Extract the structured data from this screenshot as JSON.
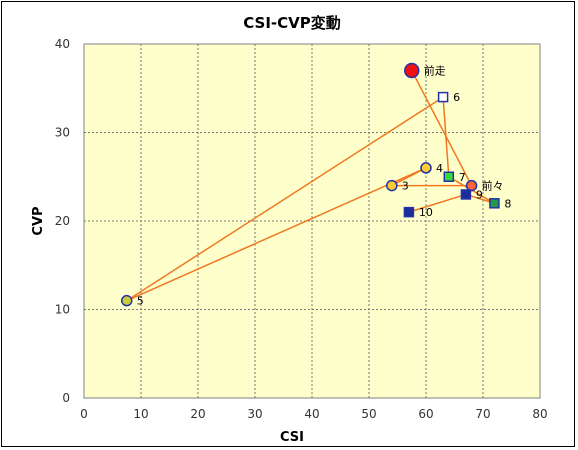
{
  "chart_data": {
    "type": "scatter",
    "title": "CSI-CVP変動",
    "xlabel": "CSI",
    "ylabel": "CVP",
    "xlim": [
      0,
      80
    ],
    "ylim": [
      0,
      40
    ],
    "xticks": [
      0,
      10,
      20,
      30,
      40,
      50,
      60,
      70,
      80
    ],
    "yticks": [
      0,
      10,
      20,
      30,
      40
    ],
    "grid": true,
    "plot_background": "#ffffcc",
    "line_color": "#f07820",
    "trajectory": [
      {
        "label": "前走",
        "x": 57.5,
        "y": 37.0,
        "marker": "circle-large",
        "fill": "#ee1111",
        "stroke": "#2233aa"
      },
      {
        "label": "前々",
        "x": 68.0,
        "y": 24.0,
        "marker": "circle",
        "fill": "#ff6633",
        "stroke": "#2233aa"
      },
      {
        "label": "3",
        "x": 54.0,
        "y": 24.0,
        "marker": "circle",
        "fill": "#ffcc33",
        "stroke": "#2233aa"
      },
      {
        "label": "4",
        "x": 60.0,
        "y": 26.0,
        "marker": "circle",
        "fill": "#ffcc33",
        "stroke": "#2233aa"
      },
      {
        "label": "5",
        "x": 7.5,
        "y": 11.0,
        "marker": "circle",
        "fill": "#cccc33",
        "stroke": "#2233aa"
      },
      {
        "label": "6",
        "x": 63.0,
        "y": 34.0,
        "marker": "square",
        "fill": "#ffffff",
        "stroke": "#2233aa"
      },
      {
        "label": "7",
        "x": 64.0,
        "y": 25.0,
        "marker": "square",
        "fill": "#33dd33",
        "stroke": "#2233aa"
      },
      {
        "label": "8",
        "x": 72.0,
        "y": 22.0,
        "marker": "square",
        "fill": "#229944",
        "stroke": "#2233aa"
      },
      {
        "label": "9",
        "x": 67.0,
        "y": 23.0,
        "marker": "square",
        "fill": "#1a2d9a",
        "stroke": "#2233aa"
      },
      {
        "label": "10",
        "x": 57.0,
        "y": 21.0,
        "marker": "square",
        "fill": "#1a2d9a",
        "stroke": "#2233aa"
      }
    ]
  }
}
